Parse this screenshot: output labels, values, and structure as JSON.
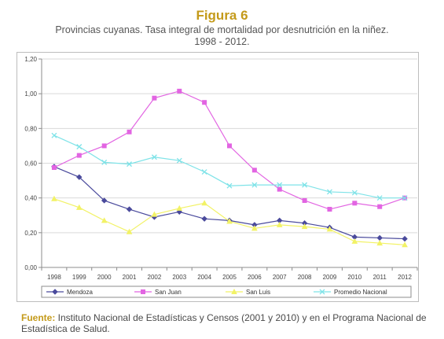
{
  "figure": {
    "label": "Figura 6",
    "title_line1": "Provincias cuyanas.  Tasa integral de mortalidad por desnutrición en la niñez.",
    "title_line2": "1998 - 2012."
  },
  "source": {
    "label": "Fuente:",
    "text": " Instituto Nacional de Estadísticas y Censos (2001 y 2010) y en el Programa Nacional de Estadística de Salud."
  },
  "chart_data": {
    "type": "line",
    "x": [
      "1998",
      "1999",
      "2000",
      "2001",
      "2002",
      "2003",
      "2004",
      "2005",
      "2006",
      "2007",
      "2008",
      "2009",
      "2010",
      "2011",
      "2012"
    ],
    "ylim": [
      0,
      1.2
    ],
    "yticks": [
      "0,00",
      "0,20",
      "0,40",
      "0,60",
      "0,80",
      "1,00",
      "1,20"
    ],
    "grid": true,
    "legend_position": "bottom",
    "series": [
      {
        "name": "Mendoza",
        "color": "#4a4a9c",
        "marker": "diamond",
        "values": [
          0.58,
          0.52,
          0.385,
          0.335,
          0.29,
          0.32,
          0.28,
          0.27,
          0.245,
          0.27,
          0.255,
          0.23,
          0.175,
          0.17,
          0.165
        ]
      },
      {
        "name": "San Juan",
        "color": "#e265e2",
        "marker": "square",
        "values": [
          0.575,
          0.645,
          0.7,
          0.78,
          0.975,
          1.015,
          0.95,
          0.7,
          0.56,
          0.45,
          0.385,
          0.335,
          0.37,
          0.35,
          0.4
        ]
      },
      {
        "name": "San Luis",
        "color": "#f2f266",
        "marker": "triangle",
        "values": [
          0.395,
          0.345,
          0.27,
          0.205,
          0.305,
          0.34,
          0.37,
          0.265,
          0.225,
          0.245,
          0.235,
          0.22,
          0.15,
          0.14,
          0.13
        ]
      },
      {
        "name": "Promedio Nacional",
        "color": "#7fe3e8",
        "marker": "cross",
        "values": [
          0.76,
          0.695,
          0.605,
          0.595,
          0.635,
          0.615,
          0.55,
          0.47,
          0.475,
          0.475,
          0.475,
          0.435,
          0.43,
          0.4,
          0.4
        ]
      }
    ]
  }
}
